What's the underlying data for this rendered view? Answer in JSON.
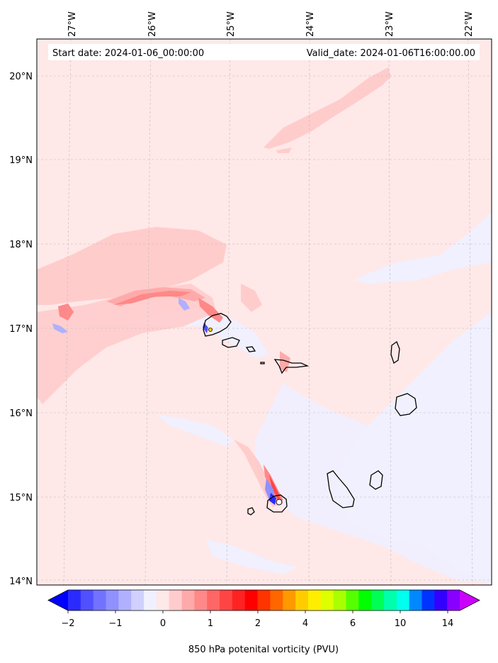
{
  "header": {
    "start_date": "Start date: 2024-01-06_00:00:00",
    "valid_date": "Valid_date: 2024-01-06T16:00:00.00"
  },
  "map": {
    "lon_ticks": [
      "27°W",
      "26°W",
      "25°W",
      "24°W",
      "23°W",
      "22°W"
    ],
    "lat_ticks": [
      "20°N",
      "19°N",
      "18°N",
      "17°N",
      "16°N",
      "15°N",
      "14°N"
    ],
    "background_color": "#ffe8e8",
    "coastline_color": "#000000"
  },
  "colorbar": {
    "label": "850 hPa potenital vorticity (PVU)",
    "tick_labels": [
      "−2",
      "−1",
      "0",
      "1",
      "2",
      "4",
      "6",
      "10",
      "14"
    ],
    "colors": [
      "#0000ff",
      "#2a2aff",
      "#5050ff",
      "#7272ff",
      "#9090ff",
      "#b0b0ff",
      "#d0d0ff",
      "#f0f0ff",
      "#ffe8e8",
      "#ffcccc",
      "#ffaaaa",
      "#ff8888",
      "#ff6666",
      "#ff4444",
      "#ff2222",
      "#ff0000",
      "#ff3300",
      "#ff6600",
      "#ff9900",
      "#ffcc00",
      "#ffee00",
      "#ddff00",
      "#aaff00",
      "#55ff00",
      "#00ff00",
      "#00ff55",
      "#00ffaa",
      "#00ffee",
      "#0088ff",
      "#0033ff",
      "#3300ff",
      "#8800ff",
      "#cc00ff"
    ]
  }
}
